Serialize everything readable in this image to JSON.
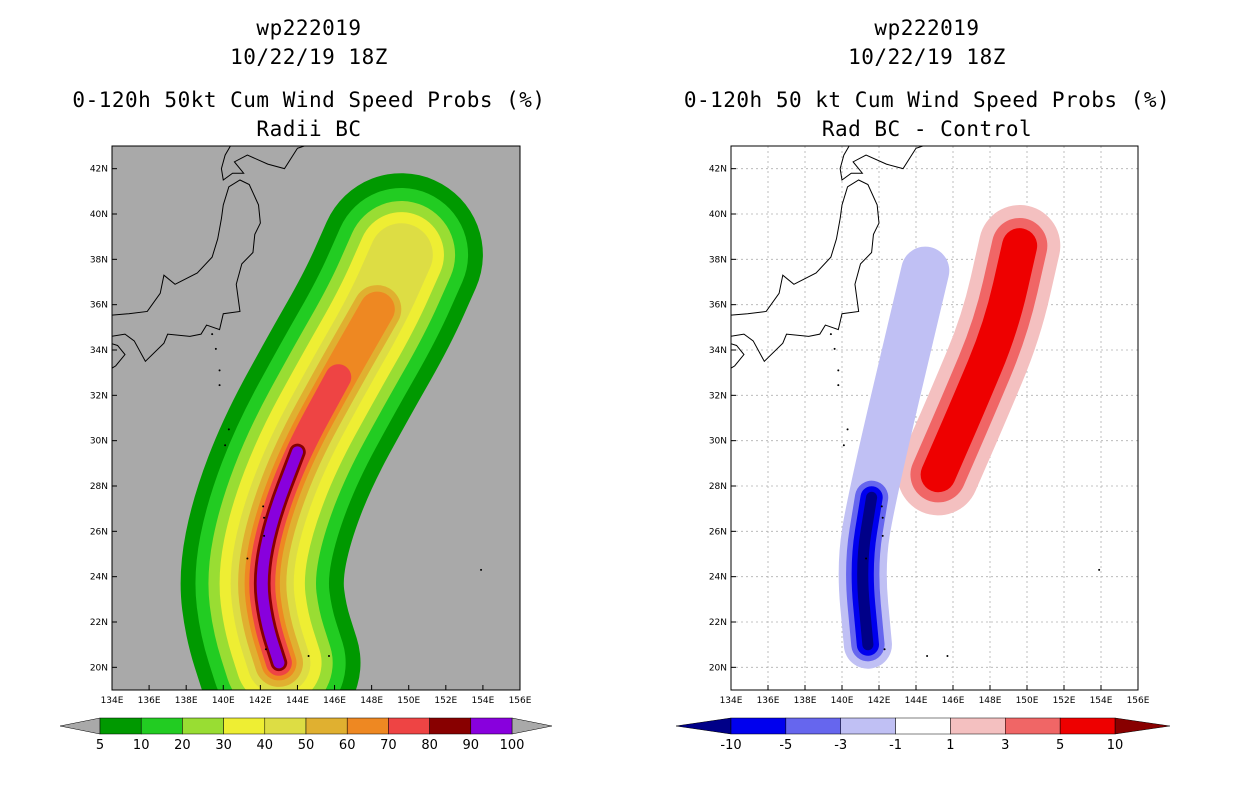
{
  "left_panel": {
    "storm_id": "wp222019",
    "datetime": "10/22/19 18Z",
    "title": "0-120h 50kt Cum Wind Speed Probs (%)",
    "subtitle": "Radii BC"
  },
  "right_panel": {
    "storm_id": "wp222019",
    "datetime": "10/22/19 18Z",
    "title": "0-120h 50 kt Cum Wind Speed Probs (%)",
    "subtitle": "Rad BC - Control"
  },
  "colors": {
    "land_bg": "#a9a9a9",
    "coast": "#000000",
    "grid": "#b0b0b0"
  },
  "chart_data": [
    {
      "type": "heatmap",
      "title": "0-120h 50kt Cum Wind Speed Probs (%) — Radii BC",
      "x_ticks": [
        "134E",
        "136E",
        "138E",
        "140E",
        "142E",
        "144E",
        "146E",
        "148E",
        "150E",
        "152E",
        "154E",
        "156E"
      ],
      "y_ticks": [
        "20N",
        "22N",
        "24N",
        "26N",
        "28N",
        "30N",
        "32N",
        "34N",
        "36N",
        "38N",
        "40N",
        "42N"
      ],
      "xlim": [
        134,
        156
      ],
      "ylim": [
        19,
        43
      ],
      "grid": false,
      "colorbar_levels": [
        "5",
        "10",
        "20",
        "30",
        "40",
        "50",
        "60",
        "70",
        "80",
        "90",
        "100"
      ],
      "colorbar_colors": [
        "#009900",
        "#22cc22",
        "#99dd33",
        "#eeee33",
        "#dddd44",
        "#e0b030",
        "#ee8822",
        "#ee4444",
        "#880000",
        "#8800dd"
      ],
      "colorbar_extend_color": "#a9a9a9",
      "track_lon": [
        143.0,
        142.3,
        142.0,
        142.6,
        144.0,
        146.2,
        148.3,
        149.6
      ],
      "track_lat": [
        20.2,
        22.0,
        24.0,
        26.5,
        29.5,
        32.8,
        35.8,
        38.2
      ],
      "contours": [
        {
          "level": "5",
          "color": "#009900",
          "width_deg": 8.8
        },
        {
          "level": "10",
          "color": "#22cc22",
          "width_deg": 7.2
        },
        {
          "level": "20",
          "color": "#99dd33",
          "width_deg": 5.8
        },
        {
          "level": "30",
          "color": "#eeee33",
          "width_deg": 4.6
        },
        {
          "level": "40",
          "color": "#dddd44",
          "width_deg": 3.4
        },
        {
          "level": "50",
          "color": "#e0b030",
          "width_deg": 2.6
        },
        {
          "level": "60",
          "color": "#ee8822",
          "width_deg": 1.9
        },
        {
          "level": "70",
          "color": "#ee4444",
          "width_deg": 1.4
        },
        {
          "level": "80",
          "color": "#880000",
          "width_deg": 0.9
        },
        {
          "level": "90",
          "color": "#8800dd",
          "width_deg": 0.6
        }
      ]
    },
    {
      "type": "heatmap",
      "title": "0-120h 50 kt Cum Wind Speed Probs (%) — Rad BC - Control",
      "x_ticks": [
        "134E",
        "136E",
        "138E",
        "140E",
        "142E",
        "144E",
        "146E",
        "148E",
        "150E",
        "152E",
        "154E",
        "156E"
      ],
      "y_ticks": [
        "20N",
        "22N",
        "24N",
        "26N",
        "28N",
        "30N",
        "32N",
        "34N",
        "36N",
        "38N",
        "40N",
        "42N"
      ],
      "xlim": [
        134,
        156
      ],
      "ylim": [
        19,
        43
      ],
      "grid": true,
      "colorbar_levels": [
        "-10",
        "-5",
        "-3",
        "-1",
        "1",
        "3",
        "5",
        "10"
      ],
      "colorbar_colors": [
        "#000088",
        "#0000ee",
        "#6666ee",
        "#c0c0f4",
        "#ffffff",
        "#f4c0c0",
        "#f06666",
        "#ee0000",
        "#880000"
      ],
      "positive_anomaly": {
        "track_lon": [
          145.2,
          146.8,
          148.6,
          149.6
        ],
        "track_lat": [
          28.5,
          31.5,
          35.0,
          38.6
        ]
      },
      "negative_anomaly": {
        "track_lon": [
          141.4,
          141.0,
          141.6,
          144.5
        ],
        "track_lat": [
          21.0,
          24.5,
          27.5,
          37.5
        ]
      }
    }
  ]
}
